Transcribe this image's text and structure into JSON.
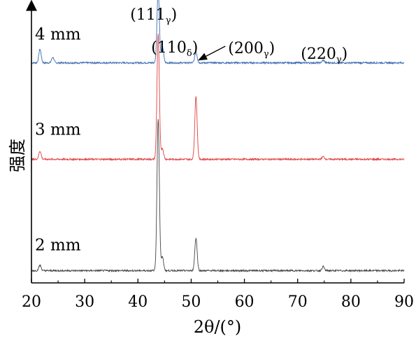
{
  "chart_data": {
    "type": "line",
    "xlabel": "2θ/(°)",
    "ylabel": "强度",
    "xlim": [
      20,
      90
    ],
    "x_ticks": [
      "20",
      "30",
      "40",
      "50",
      "60",
      "70",
      "80",
      "90"
    ],
    "grid": false,
    "series": [
      {
        "name": "4 mm",
        "color": "#3a6bb3",
        "baseline": 0.81,
        "peaks": [
          {
            "x": 21.6,
            "h": 0.05
          },
          {
            "x": 24.0,
            "h": 0.02
          },
          {
            "x": 43.8,
            "h": 0.27
          },
          {
            "x": 44.6,
            "h": 0.06
          },
          {
            "x": 50.9,
            "h": 0.04
          },
          {
            "x": 74.8,
            "h": 0.01
          }
        ]
      },
      {
        "name": "3 mm",
        "color": "#e04040",
        "baseline": 0.455,
        "peaks": [
          {
            "x": 21.6,
            "h": 0.03
          },
          {
            "x": 43.8,
            "h": 0.46
          },
          {
            "x": 44.6,
            "h": 0.04
          },
          {
            "x": 50.9,
            "h": 0.23
          },
          {
            "x": 74.8,
            "h": 0.01
          }
        ]
      },
      {
        "name": "2 mm",
        "color": "#444444",
        "baseline": 0.045,
        "peaks": [
          {
            "x": 21.6,
            "h": 0.02
          },
          {
            "x": 43.8,
            "h": 0.56
          },
          {
            "x": 44.6,
            "h": 0.05
          },
          {
            "x": 50.9,
            "h": 0.12
          },
          {
            "x": 74.8,
            "h": 0.015
          }
        ]
      }
    ],
    "annotations": [
      {
        "main": "(111",
        "sub": "γ",
        "close": ")",
        "x": 43.8
      },
      {
        "main": "(110",
        "sub": "δ",
        "close": ")",
        "x": 44.6
      },
      {
        "main": "(200",
        "sub": "γ",
        "close": ")",
        "x": 50.9,
        "arrow": true
      },
      {
        "main": "(220",
        "sub": "γ",
        "close": ")",
        "x": 74.8
      }
    ]
  }
}
